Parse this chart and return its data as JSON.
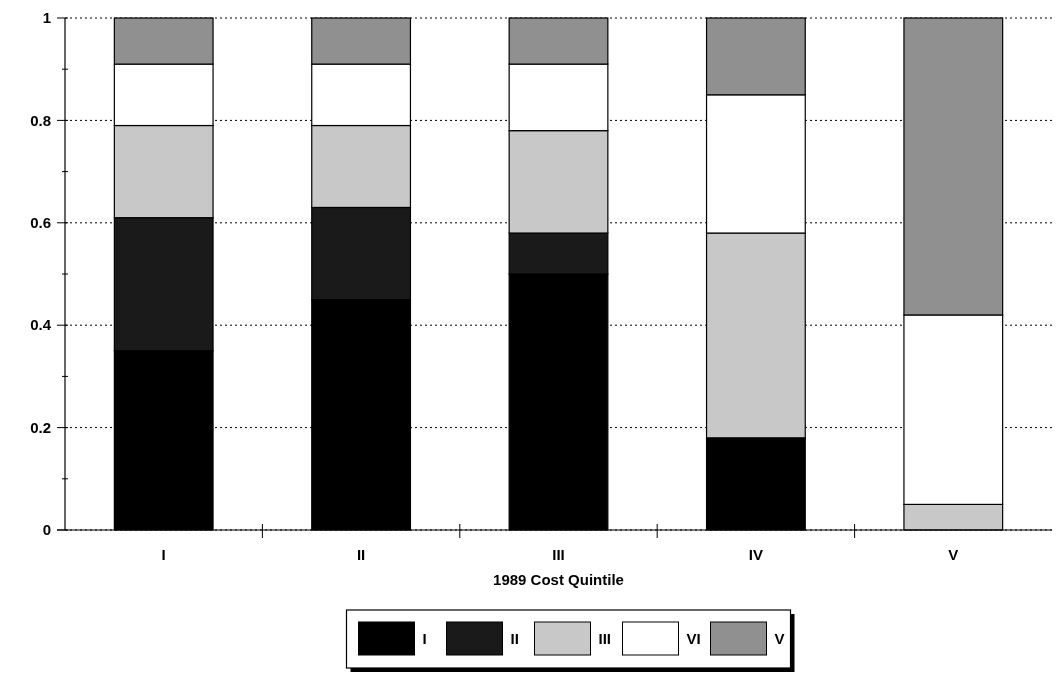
{
  "chart_data": {
    "type": "bar",
    "stacked": true,
    "xlabel": "1989 Cost Quintile",
    "categories": [
      "I",
      "II",
      "III",
      "IV",
      "V"
    ],
    "series": [
      {
        "name": "I",
        "color": "#000000",
        "values": [
          0.35,
          0.45,
          0.5,
          0.18,
          0
        ]
      },
      {
        "name": "II",
        "color": "#1a1a1a",
        "values": [
          0.26,
          0.18,
          0.08,
          0,
          0
        ]
      },
      {
        "name": "III",
        "color": "#c8c8c8",
        "values": [
          0.18,
          0.16,
          0.2,
          0.4,
          0.05
        ]
      },
      {
        "name": "VI",
        "color": "#ffffff",
        "values": [
          0.12,
          0.12,
          0.13,
          0.27,
          0.37
        ]
      },
      {
        "name": "V",
        "color": "#909090",
        "values": [
          0.09,
          0.09,
          0.09,
          0.15,
          0.58
        ]
      }
    ],
    "ylim": [
      0,
      1
    ],
    "yticks": [
      0,
      {
        "value": 0.1,
        "label": null
      },
      {
        "value": 0.2,
        "label": "0.2"
      },
      {
        "value": 0.3,
        "label": null
      },
      {
        "value": 0.4,
        "label": "0.4"
      },
      {
        "value": 0.5,
        "label": null
      },
      {
        "value": 0.6,
        "label": "0.6"
      },
      {
        "value": 0.7,
        "label": null
      },
      {
        "value": 0.8,
        "label": "0.8"
      },
      {
        "value": 0.9,
        "label": null
      },
      1
    ],
    "grid": "y",
    "legend": "bottom"
  }
}
